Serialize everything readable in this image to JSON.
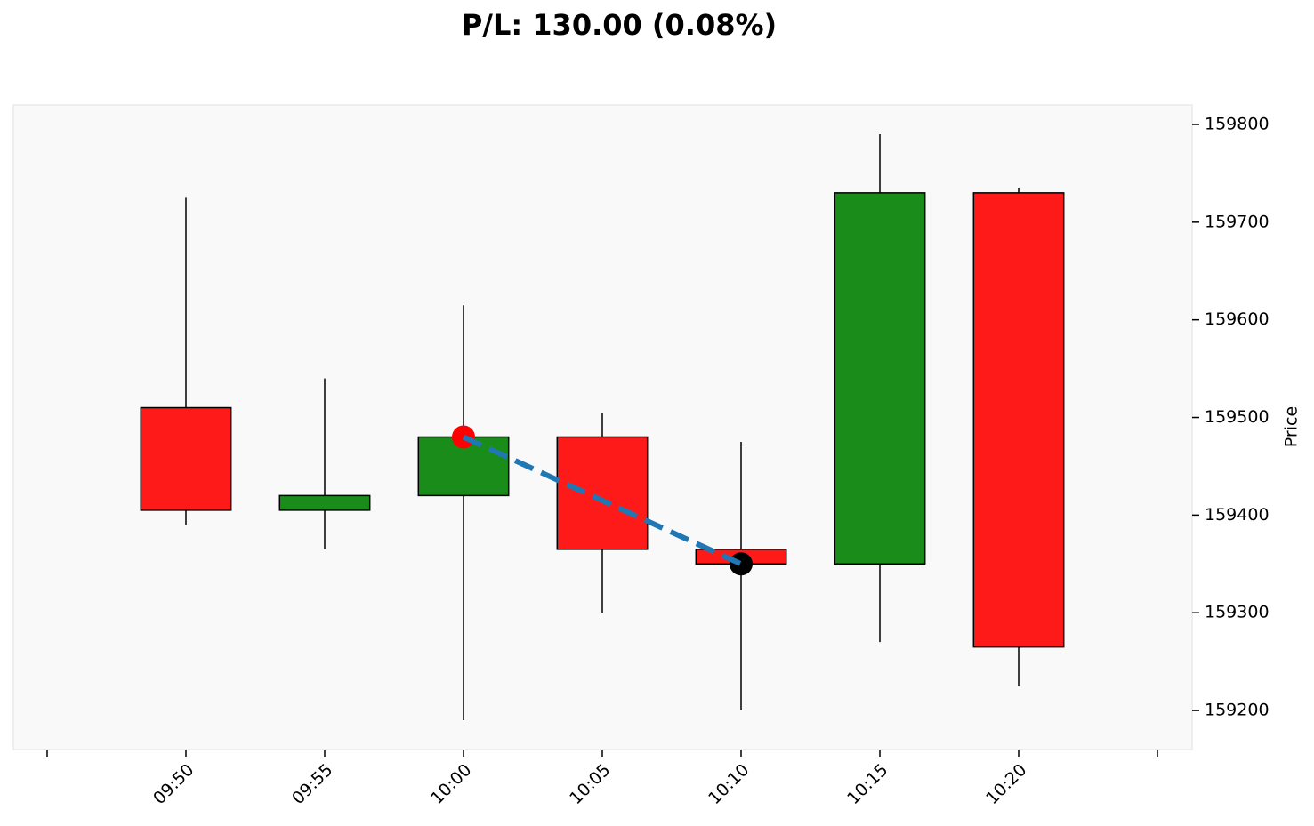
{
  "chart_data": {
    "type": "candlestick",
    "title": "P/L: 130.00 (0.08%)",
    "y_label": "Price",
    "categories": [
      null,
      "09:50",
      "09:55",
      "10:00",
      "10:05",
      "10:10",
      "10:15",
      "10:20",
      null
    ],
    "open": [
      null,
      159510,
      159405,
      159420,
      159480,
      159365,
      159350,
      159730,
      null
    ],
    "high": [
      null,
      159725,
      159540,
      159615,
      159505,
      159475,
      159790,
      159735,
      null
    ],
    "low": [
      null,
      159390,
      159365,
      159190,
      159300,
      159200,
      159270,
      159225,
      null
    ],
    "close": [
      null,
      159405,
      159420,
      159480,
      159365,
      159350,
      159730,
      159265,
      null
    ],
    "up_color": "#1a8c1a",
    "down_color": "#ff1a1a",
    "ylim": [
      159160,
      159820
    ],
    "yticks": [
      159200,
      159300,
      159400,
      159500,
      159600,
      159700,
      159800
    ],
    "trade": {
      "x": [
        "10:00",
        "10:10"
      ],
      "values": [
        159480,
        159350
      ],
      "colors": [
        "#ff0000",
        "#000000"
      ],
      "line_color": "#1f77b4"
    },
    "background": "#f9f9f9"
  }
}
